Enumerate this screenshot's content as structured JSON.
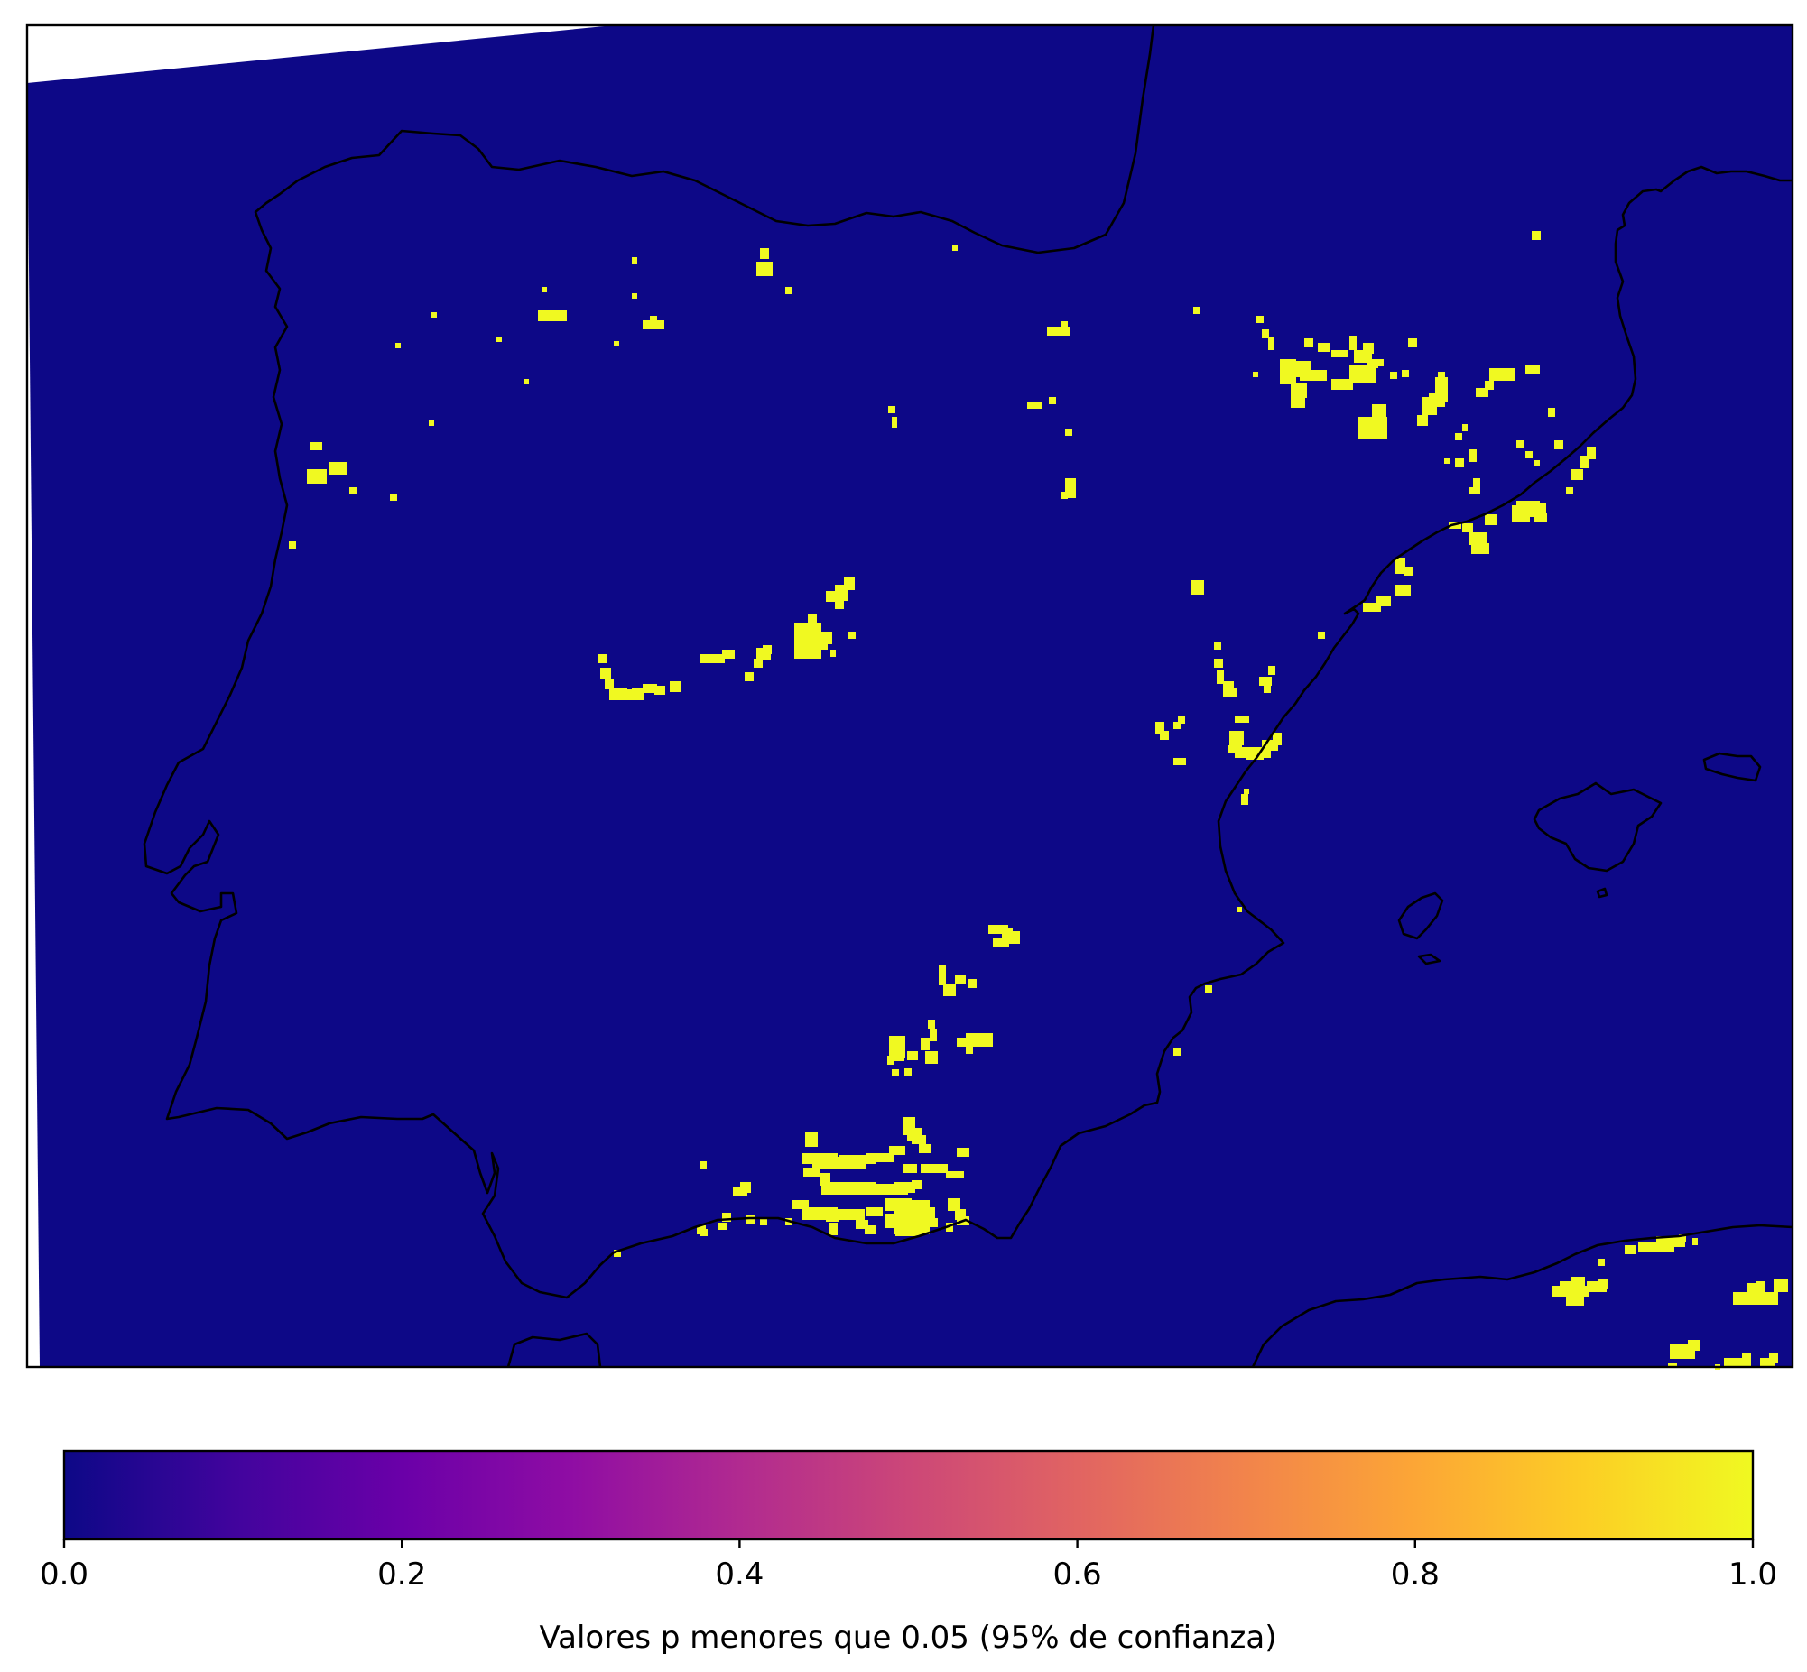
{
  "map": {
    "region": "Iberian Peninsula",
    "background_value_color": "#0d0887",
    "significant_value_color": "#f0f921",
    "coastline_color": "#000000"
  },
  "colorbar": {
    "label": "Valores p menores que 0.05 (95% de confianza)",
    "colormap": "plasma",
    "stops": [
      "#0d0887",
      "#41049d",
      "#6a00a8",
      "#8f0da4",
      "#b12a90",
      "#cc4778",
      "#e16462",
      "#f2844b",
      "#fca636",
      "#fcce25",
      "#f0f921"
    ],
    "range": [
      0.0,
      1.0
    ],
    "ticks": [
      0.0,
      0.2,
      0.4,
      0.6,
      0.8,
      1.0
    ],
    "tick_labels": [
      "0.0",
      "0.2",
      "0.4",
      "0.6",
      "0.8",
      "1.0"
    ]
  }
}
